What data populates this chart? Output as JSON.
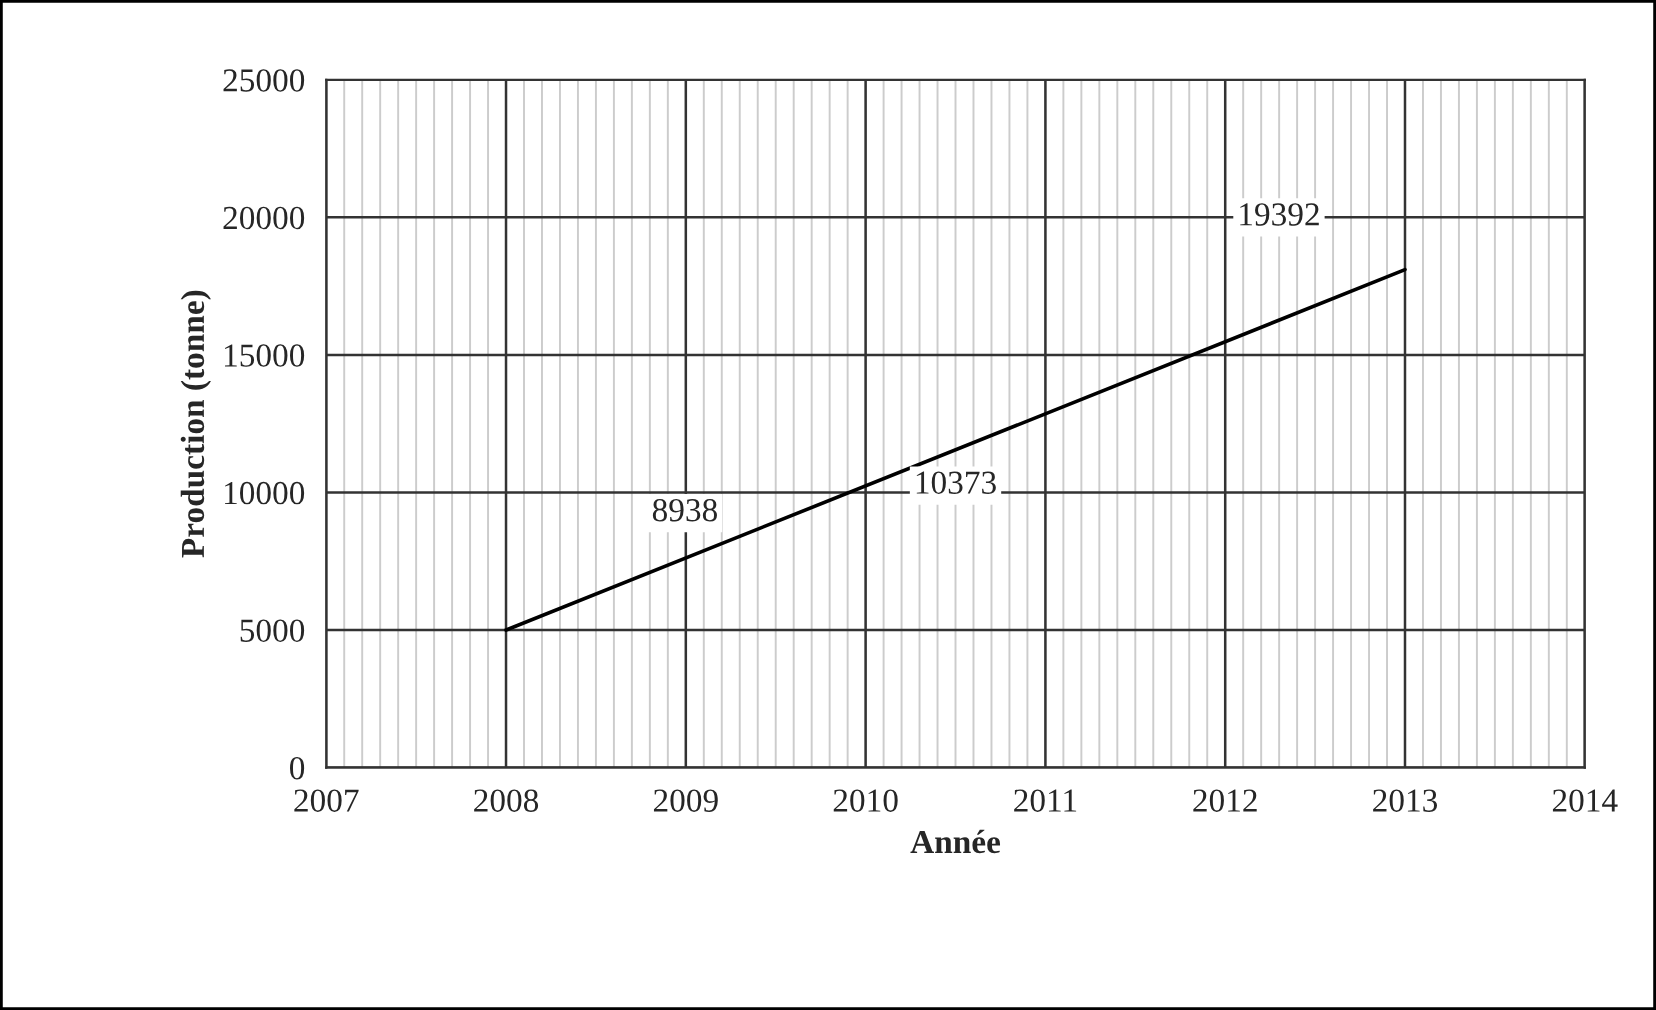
{
  "chart_data": {
    "type": "line",
    "xlabel": "Année",
    "ylabel": "Production (tonne)",
    "x": [
      2008,
      2013
    ],
    "values": [
      5000,
      18100
    ],
    "color": "#000000",
    "xlim": [
      2007,
      2014
    ],
    "xticks": [
      2007,
      2008,
      2009,
      2010,
      2011,
      2012,
      2013,
      2014
    ],
    "ylim": [
      0,
      25000
    ],
    "yticks": [
      0,
      5000,
      10000,
      15000,
      20000,
      25000
    ],
    "grid": true,
    "marker": "none",
    "line_style": "solid",
    "annotations": [
      "8938",
      "10373",
      "19392"
    ]
  }
}
